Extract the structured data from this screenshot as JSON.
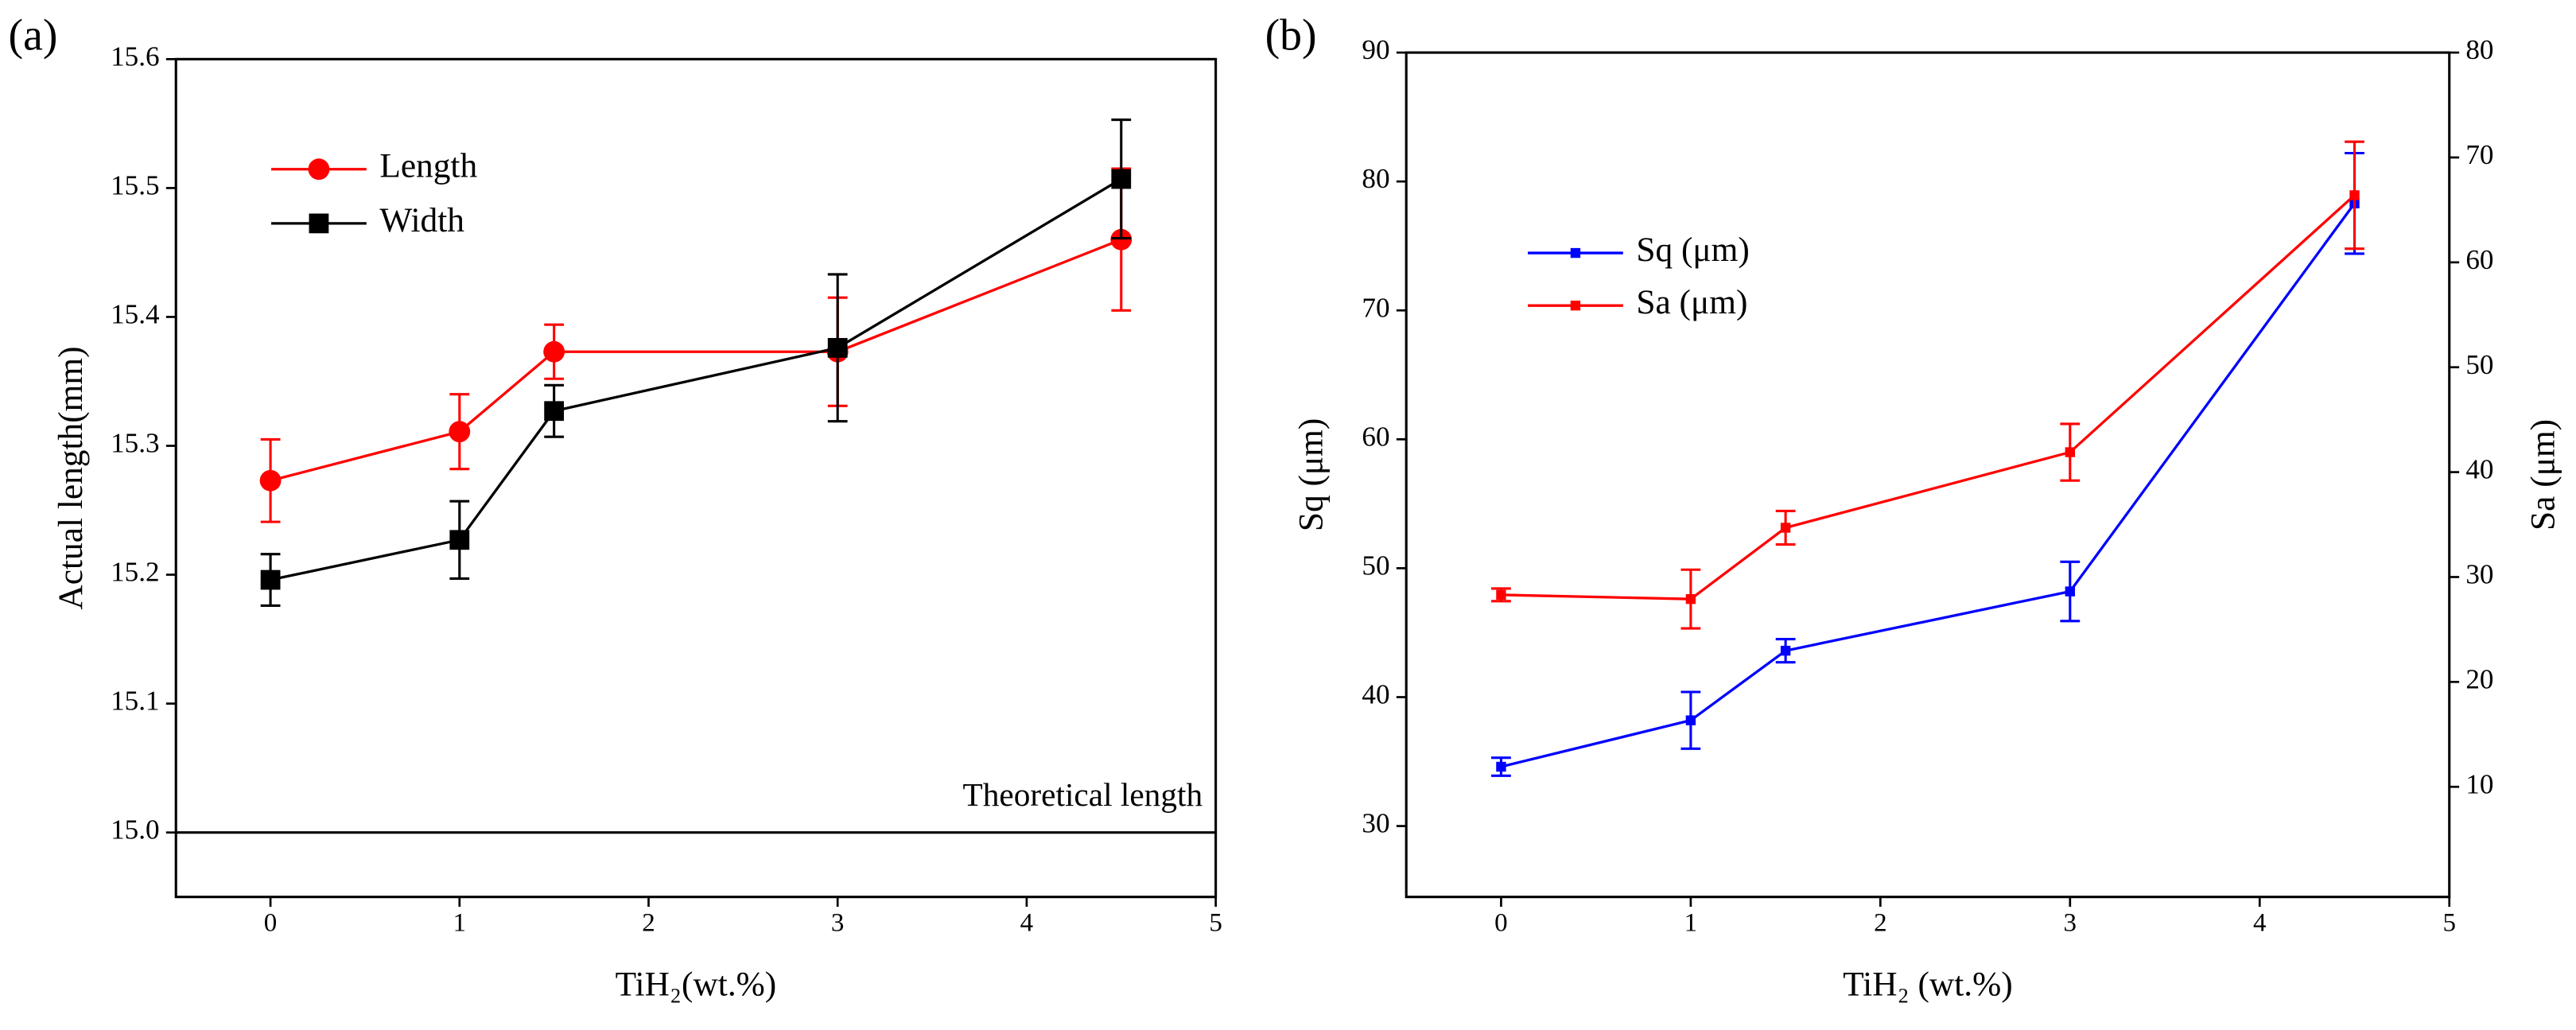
{
  "chart_data": [
    {
      "type": "line",
      "panel_label": "(a)",
      "xlabel": "TiH₂(wt.%)",
      "ylabel": "Actual length(mm)",
      "x": [
        0,
        1,
        1.5,
        3,
        4.5
      ],
      "xlim": [
        -0.5,
        5
      ],
      "xticks": [
        0,
        1,
        2,
        3,
        4,
        5
      ],
      "ylim": [
        14.95,
        15.6
      ],
      "yticks": [
        {
          "value": 15,
          "label": "15.0"
        },
        15.1,
        15.2,
        15.3,
        15.4,
        15.5,
        15.6
      ],
      "grid": false,
      "reference_line": {
        "value": 15,
        "label": "Theoretical length"
      },
      "series": [
        {
          "name": "Length",
          "color": "#ff0000",
          "marker": "circle",
          "values": [
            15.273,
            15.311,
            15.373,
            15.373,
            15.46
          ],
          "errors": [
            0.032,
            0.029,
            0.021,
            0.042,
            0.055
          ]
        },
        {
          "name": "Width",
          "color": "#000000",
          "marker": "square",
          "values": [
            15.196,
            15.227,
            15.327,
            15.376,
            15.507
          ],
          "errors": [
            0.02,
            0.03,
            0.02,
            0.057,
            0.046
          ]
        }
      ]
    },
    {
      "type": "line",
      "panel_label": "(b)",
      "xlabel": "TiH₂ (wt.%)",
      "ylabel": "Sq (μm)",
      "y2label": "Sa (μm)",
      "x": [
        0,
        1,
        1.5,
        3,
        4.5
      ],
      "xlim": [
        -0.5,
        5
      ],
      "xticks": [
        0,
        1,
        2,
        3,
        4,
        5
      ],
      "ylim": [
        24.5,
        90
      ],
      "yticks": [
        30,
        40,
        50,
        60,
        70,
        80,
        90
      ],
      "y2lim": [
        -0.5,
        80
      ],
      "y2ticks": [
        10,
        20,
        30,
        40,
        50,
        60,
        70,
        80
      ],
      "grid": false,
      "series": [
        {
          "name": "Sq (μm)",
          "color": "#0000ff",
          "marker": "small-square",
          "values": [
            34.6,
            38.2,
            43.6,
            48.2,
            78.3
          ],
          "errors": [
            0.7,
            2.2,
            0.9,
            2.3,
            3.9
          ]
        },
        {
          "name": "Sa (μm)",
          "color": "#ff0000",
          "marker": "small-square",
          "axis": "y2",
          "values": [
            28.3,
            27.9,
            34.7,
            41.9,
            66.4
          ],
          "errors": [
            0.6,
            2.8,
            1.6,
            2.7,
            5.1
          ]
        }
      ]
    }
  ]
}
